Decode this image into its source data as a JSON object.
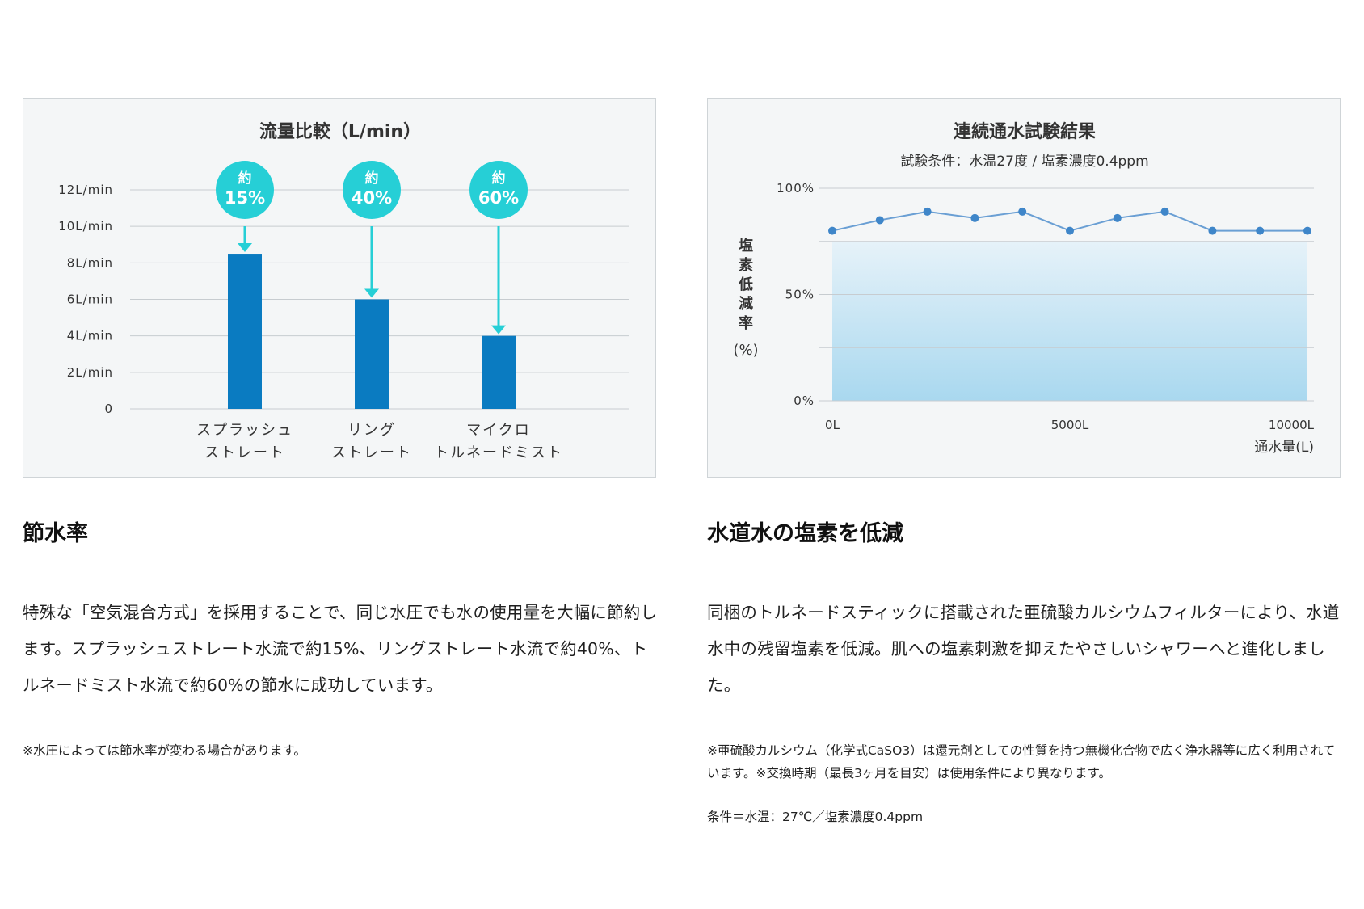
{
  "chart_data": [
    {
      "type": "bar",
      "title": "流量比較（L/min）",
      "categories": [
        [
          "スプラッシュ",
          "ストレート"
        ],
        [
          "リング",
          "ストレート"
        ],
        [
          "マイクロ",
          "トルネードミスト"
        ]
      ],
      "values": [
        8.5,
        6,
        4
      ],
      "y_ticks": [
        "0",
        "2L/min",
        "4L/min",
        "6L/min",
        "8L/min",
        "10L/min",
        "12L/min"
      ],
      "ylim": [
        0,
        12
      ],
      "grid": true,
      "badges": [
        {
          "top": "約",
          "bottom": "15%"
        },
        {
          "top": "約",
          "bottom": "40%"
        },
        {
          "top": "約",
          "bottom": "60%"
        }
      ],
      "colors": {
        "bar": "#0a7bc1",
        "badge": "#26cfd6",
        "arrow": "#26cfd6"
      }
    },
    {
      "type": "area",
      "title": "連続通水試験結果",
      "subtitle": "試験条件：水温27度 / 塩素濃度0.4ppm",
      "ylabel_chars": [
        "塩",
        "素",
        "低",
        "減",
        "率"
      ],
      "ylabel_unit": "(%)",
      "xlabel": "通水量(L)",
      "y_ticks": [
        {
          "value": 0,
          "label": "0%"
        },
        {
          "value": 50,
          "label": "50%"
        },
        {
          "value": 100,
          "label": "100%"
        }
      ],
      "x_ticks": [
        {
          "value": 0,
          "label": "0L"
        },
        {
          "value": 5000,
          "label": "5000L"
        },
        {
          "value": 10000,
          "label": "10000L"
        }
      ],
      "xlim": [
        0,
        10000
      ],
      "ylim": [
        0,
        100
      ],
      "grid": true,
      "x": [
        0,
        1000,
        2000,
        3000,
        4000,
        5000,
        6000,
        7000,
        8000,
        9000,
        10000
      ],
      "y": [
        80,
        85,
        89,
        86,
        89,
        80,
        86,
        89,
        80,
        80,
        80
      ],
      "area_top": 75,
      "colors": {
        "line": "#6a9fd4",
        "point": "#3f86c9",
        "fill_top": "#e6f2f9",
        "fill_bottom": "#a9d8ef"
      }
    }
  ],
  "left": {
    "heading": "節水率",
    "body": "特殊な「空気混合方式」を採用することで、同じ水圧でも水の使用量を大幅に節約します。スプラッシュストレート水流で約15%、リングストレート水流で約40%、トルネードミスト水流で約60%の節水に成功しています。",
    "note": "※水圧によっては節水率が変わる場合があります。"
  },
  "right": {
    "heading": "水道水の塩素を低減",
    "body": "同梱のトルネードスティックに搭載された亜硫酸カルシウムフィルターにより、水道水中の残留塩素を低減。肌への塩素刺激を抑えたやさしいシャワーへと進化しました。",
    "note": "※亜硫酸カルシウム（化学式CaSO3）は還元剤としての性質を持つ無機化合物で広く浄水器等に広く利用されています。※交換時期（最長3ヶ月を目安）は使用条件により異なります。",
    "condition": "条件＝水温：27℃／塩素濃度0.4ppm"
  }
}
